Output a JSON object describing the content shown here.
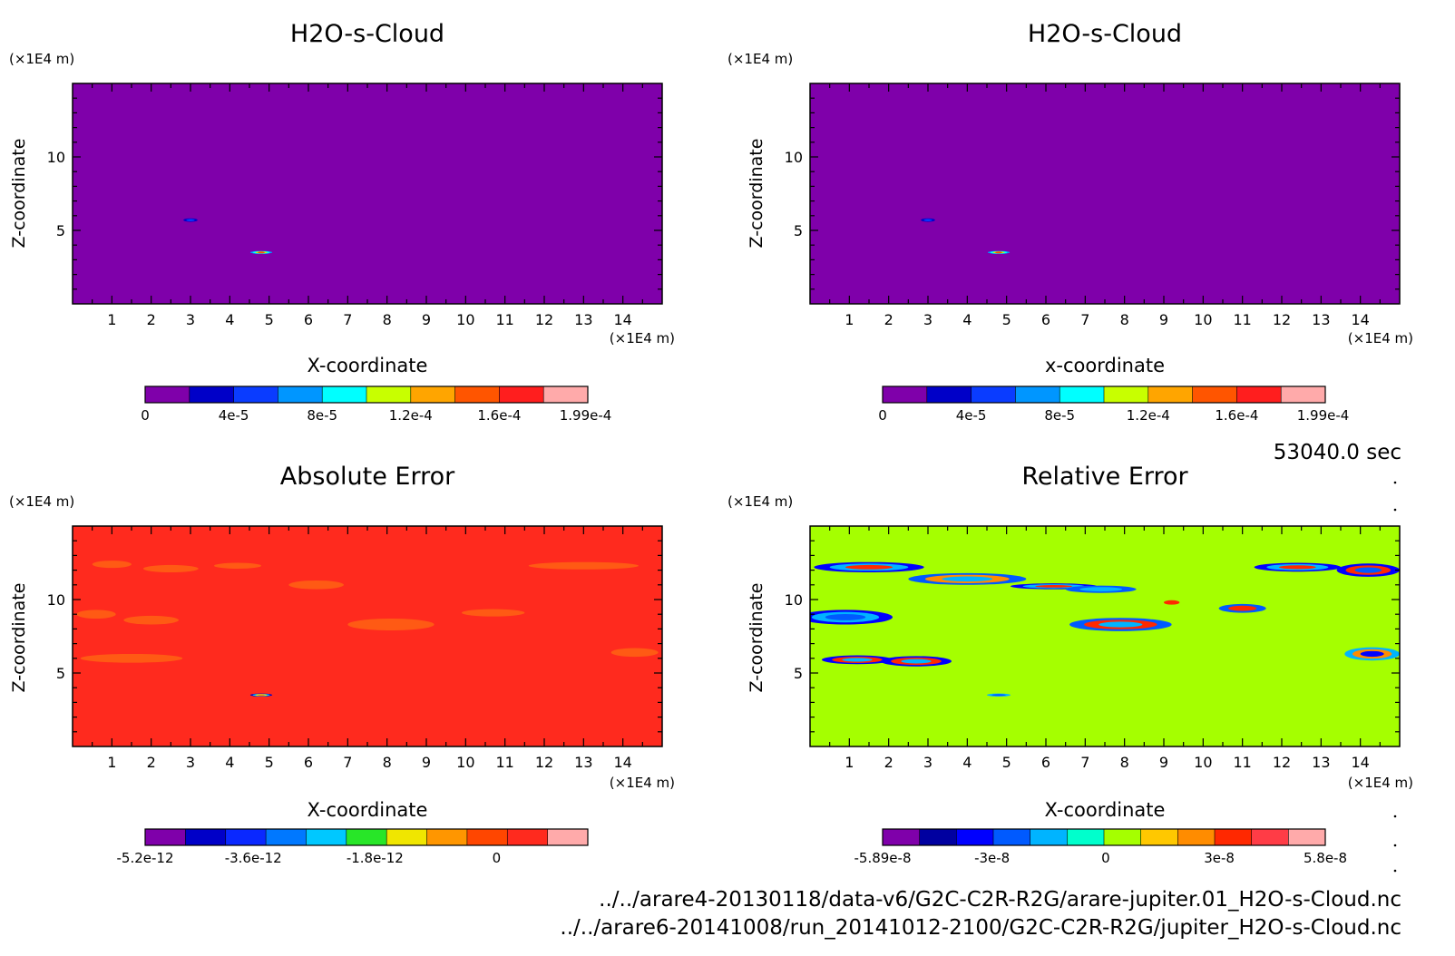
{
  "chart_data": [
    {
      "type": "heatmap",
      "title": "H2O-s-Cloud",
      "xlabel": "X-coordinate",
      "ylabel": "Z-coordinate",
      "x_unit": "(×1E4 m)",
      "y_unit": "(×1E4 m)",
      "xlim": [
        0,
        15
      ],
      "ylim": [
        0,
        15
      ],
      "x_ticks": [
        "1",
        "2",
        "3",
        "4",
        "5",
        "6",
        "7",
        "8",
        "9",
        "10",
        "11",
        "12",
        "13",
        "14"
      ],
      "y_ticks": [
        "5",
        "10"
      ],
      "background_color": "#7f00aa",
      "colorbar": {
        "colors": [
          "#7f00aa",
          "#0000c8",
          "#0a3cff",
          "#0096ff",
          "#00ffff",
          "#c8ff00",
          "#ffa500",
          "#ff5500",
          "#ff1e1e",
          "#ffaaaa"
        ],
        "tick_labels": [
          "0",
          "4e-5",
          "8e-5",
          "1.2e-4",
          "1.6e-4",
          "1.99e-4"
        ]
      },
      "features": [
        {
          "x": 3.0,
          "z": 5.7,
          "rx": 0.18,
          "rz": 0.12,
          "colors": [
            "#0000c8",
            "#0a3cff"
          ]
        },
        {
          "x": 4.8,
          "z": 3.5,
          "rx": 0.28,
          "rz": 0.1,
          "colors": [
            "#0096ff",
            "#00ffff",
            "#c8ff00",
            "#ff5500"
          ]
        }
      ]
    },
    {
      "type": "heatmap",
      "title": "H2O-s-Cloud",
      "xlabel": "x-coordinate",
      "ylabel": "Z-coordinate",
      "x_unit": "(×1E4 m)",
      "y_unit": "(×1E4 m)",
      "xlim": [
        0,
        15
      ],
      "ylim": [
        0,
        15
      ],
      "x_ticks": [
        "1",
        "2",
        "3",
        "4",
        "5",
        "6",
        "7",
        "8",
        "9",
        "10",
        "11",
        "12",
        "13",
        "14"
      ],
      "y_ticks": [
        "5",
        "10"
      ],
      "background_color": "#7f00aa",
      "colorbar": {
        "colors": [
          "#7f00aa",
          "#0000c8",
          "#0a3cff",
          "#0096ff",
          "#00ffff",
          "#c8ff00",
          "#ffa500",
          "#ff5500",
          "#ff1e1e",
          "#ffaaaa"
        ],
        "tick_labels": [
          "0",
          "4e-5",
          "8e-5",
          "1.2e-4",
          "1.6e-4",
          "1.99e-4"
        ]
      },
      "features": [
        {
          "x": 3.0,
          "z": 5.7,
          "rx": 0.18,
          "rz": 0.12,
          "colors": [
            "#0000c8",
            "#0a3cff"
          ]
        },
        {
          "x": 4.8,
          "z": 3.5,
          "rx": 0.28,
          "rz": 0.1,
          "colors": [
            "#0096ff",
            "#00ffff",
            "#c8ff00",
            "#ff5500"
          ]
        }
      ]
    },
    {
      "type": "heatmap",
      "title": "Absolute Error",
      "xlabel": "X-coordinate",
      "ylabel": "Z-coordinate",
      "x_unit": "(×1E4 m)",
      "y_unit": "(×1E4 m)",
      "xlim": [
        0,
        15
      ],
      "ylim": [
        0,
        15
      ],
      "x_ticks": [
        "1",
        "2",
        "3",
        "4",
        "5",
        "6",
        "7",
        "8",
        "9",
        "10",
        "11",
        "12",
        "13",
        "14"
      ],
      "y_ticks": [
        "5",
        "10"
      ],
      "background_color": "#ff2a1e",
      "colorbar": {
        "colors": [
          "#7f00aa",
          "#0000c8",
          "#0a28ff",
          "#0078ff",
          "#00c8ff",
          "#28e628",
          "#f0e600",
          "#ff9600",
          "#ff4600",
          "#ff2a1e",
          "#ffaaaa"
        ],
        "tick_labels": [
          "-5.2e-12",
          "-3.6e-12",
          "-1.8e-12",
          "0"
        ]
      },
      "features": [
        {
          "x": 1.0,
          "z": 12.4,
          "rx": 0.5,
          "rz": 0.25,
          "colors": [
            "#ff5a14"
          ]
        },
        {
          "x": 2.5,
          "z": 12.1,
          "rx": 0.7,
          "rz": 0.25,
          "colors": [
            "#ff5a14"
          ]
        },
        {
          "x": 4.2,
          "z": 12.3,
          "rx": 0.6,
          "rz": 0.2,
          "colors": [
            "#ff5a14"
          ]
        },
        {
          "x": 6.2,
          "z": 11.0,
          "rx": 0.7,
          "rz": 0.3,
          "colors": [
            "#ff5a14"
          ]
        },
        {
          "x": 0.6,
          "z": 9.0,
          "rx": 0.5,
          "rz": 0.3,
          "colors": [
            "#ff5a14"
          ]
        },
        {
          "x": 2.0,
          "z": 8.6,
          "rx": 0.7,
          "rz": 0.3,
          "colors": [
            "#ff5a14"
          ]
        },
        {
          "x": 8.1,
          "z": 8.3,
          "rx": 1.1,
          "rz": 0.4,
          "colors": [
            "#ff5a14"
          ]
        },
        {
          "x": 10.7,
          "z": 9.1,
          "rx": 0.8,
          "rz": 0.25,
          "colors": [
            "#ff5a14"
          ]
        },
        {
          "x": 13.0,
          "z": 12.3,
          "rx": 1.4,
          "rz": 0.25,
          "colors": [
            "#ff5a14"
          ]
        },
        {
          "x": 1.5,
          "z": 6.0,
          "rx": 1.3,
          "rz": 0.3,
          "colors": [
            "#ff5a14"
          ]
        },
        {
          "x": 14.3,
          "z": 6.4,
          "rx": 0.6,
          "rz": 0.3,
          "colors": [
            "#ff5a14"
          ]
        },
        {
          "x": 4.8,
          "z": 3.5,
          "rx": 0.28,
          "rz": 0.1,
          "colors": [
            "#0000c8",
            "#00c8ff",
            "#f0e600",
            "#ff9600"
          ]
        }
      ]
    },
    {
      "type": "heatmap",
      "title": "Relative Error",
      "xlabel": "X-coordinate",
      "ylabel": "Z-coordinate",
      "x_unit": "(×1E4 m)",
      "y_unit": "(×1E4 m)",
      "xlim": [
        0,
        15
      ],
      "ylim": [
        0,
        15
      ],
      "x_ticks": [
        "1",
        "2",
        "3",
        "4",
        "5",
        "6",
        "7",
        "8",
        "9",
        "10",
        "11",
        "12",
        "13",
        "14"
      ],
      "y_ticks": [
        "5",
        "10"
      ],
      "background_color": "#a5ff00",
      "colorbar": {
        "colors": [
          "#7f00aa",
          "#0000a0",
          "#0000ff",
          "#005aff",
          "#00b4ff",
          "#00ffcc",
          "#a5ff00",
          "#ffc800",
          "#ff8c00",
          "#ff2800",
          "#ff3c46",
          "#ffaaaa"
        ],
        "tick_labels": [
          "-5.89e-8",
          "-3e-8",
          "0",
          "3e-8",
          "5.8e-8"
        ]
      },
      "features": [
        {
          "x": 1.5,
          "z": 12.2,
          "rx": 1.4,
          "rz": 0.35,
          "colors": [
            "#0000ff",
            "#00b4ff",
            "#ff2800"
          ]
        },
        {
          "x": 4.0,
          "z": 11.4,
          "rx": 1.5,
          "rz": 0.4,
          "colors": [
            "#005aff",
            "#ff8c00",
            "#00b4ff"
          ]
        },
        {
          "x": 6.2,
          "z": 10.9,
          "rx": 1.1,
          "rz": 0.2,
          "colors": [
            "#0000ff",
            "#00b4ff",
            "#ff2800"
          ]
        },
        {
          "x": 7.4,
          "z": 10.7,
          "rx": 0.9,
          "rz": 0.25,
          "colors": [
            "#005aff",
            "#00b4ff"
          ]
        },
        {
          "x": 0.9,
          "z": 8.8,
          "rx": 1.2,
          "rz": 0.5,
          "colors": [
            "#0000ff",
            "#00b4ff",
            "#005aff"
          ]
        },
        {
          "x": 1.2,
          "z": 5.9,
          "rx": 0.9,
          "rz": 0.3,
          "colors": [
            "#0000ff",
            "#ff2800",
            "#00b4ff"
          ]
        },
        {
          "x": 2.7,
          "z": 5.8,
          "rx": 0.9,
          "rz": 0.35,
          "colors": [
            "#0000ff",
            "#ff2800",
            "#00b4ff"
          ]
        },
        {
          "x": 7.9,
          "z": 8.3,
          "rx": 1.3,
          "rz": 0.45,
          "colors": [
            "#005aff",
            "#ff2800",
            "#00b4ff"
          ]
        },
        {
          "x": 9.2,
          "z": 9.8,
          "rx": 0.2,
          "rz": 0.15,
          "colors": [
            "#ff2800"
          ]
        },
        {
          "x": 11.0,
          "z": 9.4,
          "rx": 0.6,
          "rz": 0.3,
          "colors": [
            "#005aff",
            "#ff2800"
          ]
        },
        {
          "x": 12.4,
          "z": 12.2,
          "rx": 1.1,
          "rz": 0.3,
          "colors": [
            "#0000ff",
            "#00b4ff",
            "#ff2800"
          ]
        },
        {
          "x": 14.2,
          "z": 12.0,
          "rx": 0.8,
          "rz": 0.45,
          "colors": [
            "#0000ff",
            "#ff2800",
            "#005aff"
          ]
        },
        {
          "x": 14.3,
          "z": 6.3,
          "rx": 0.7,
          "rz": 0.45,
          "colors": [
            "#00b4ff",
            "#ff8c00",
            "#0000ff"
          ]
        },
        {
          "x": 4.8,
          "z": 3.5,
          "rx": 0.3,
          "rz": 0.1,
          "colors": [
            "#00b4ff",
            "#005aff"
          ]
        }
      ]
    }
  ],
  "annotations": {
    "time": "53040.0 sec",
    "file_paths": [
      "../../arare4-20130118/data-v6/G2C-C2R-R2G/arare-jupiter.01_H2O-s-Cloud.nc",
      "../../arare6-20141008/run_20141012-2100/G2C-C2R-R2G/jupiter_H2O-s-Cloud.nc"
    ]
  }
}
